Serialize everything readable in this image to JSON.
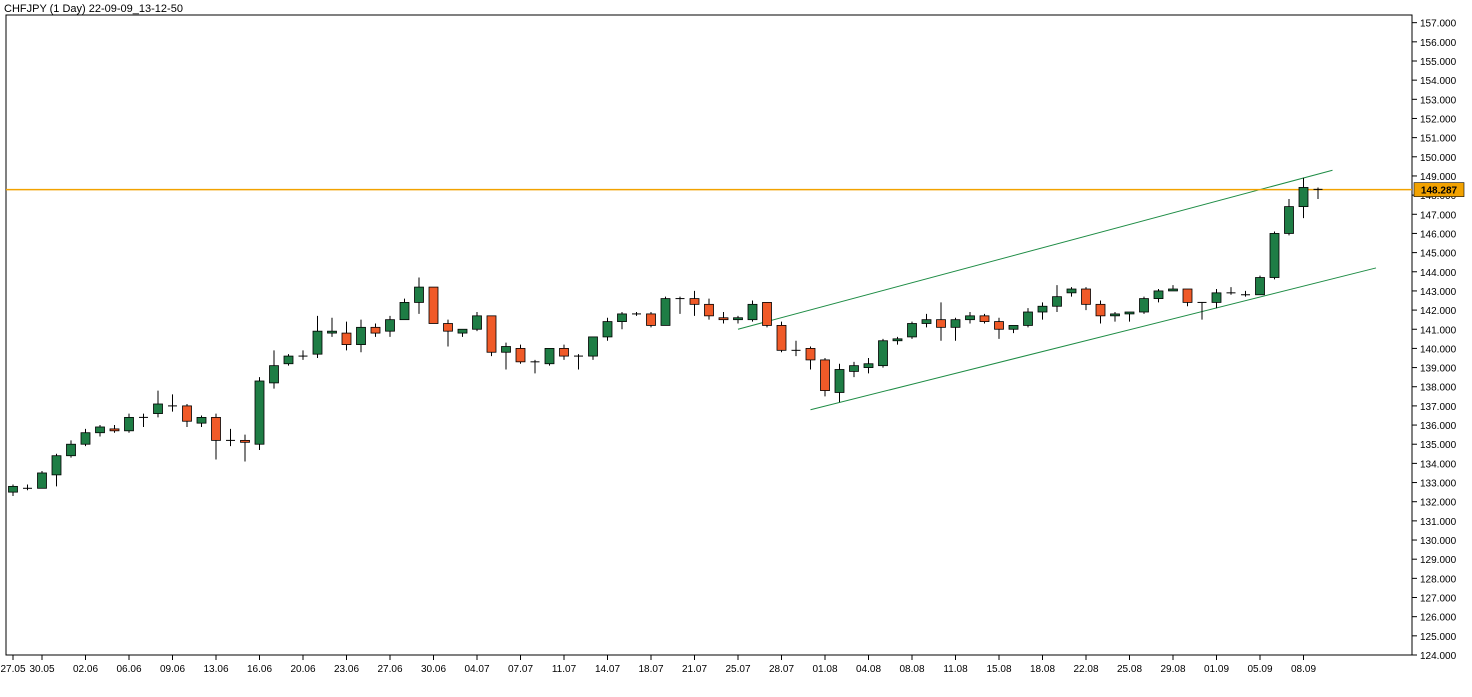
{
  "chart_data": {
    "type": "candlestick",
    "title": "CHFJPY (1 Day) 22-09-09_13-12-50",
    "ylim": [
      124.0,
      157.4
    ],
    "y_ticks": [
      "124.000",
      "125.000",
      "126.000",
      "127.000",
      "128.000",
      "129.000",
      "130.000",
      "131.000",
      "132.000",
      "133.000",
      "134.000",
      "135.000",
      "136.000",
      "137.000",
      "138.000",
      "139.000",
      "140.000",
      "141.000",
      "142.000",
      "143.000",
      "144.000",
      "145.000",
      "146.000",
      "147.000",
      "148.000",
      "149.000",
      "150.000",
      "151.000",
      "152.000",
      "153.000",
      "154.000",
      "155.000",
      "156.000",
      "157.000"
    ],
    "x_tick_labels": [
      {
        "label": "27.05",
        "index": 0
      },
      {
        "label": "30.05",
        "index": 2
      },
      {
        "label": "02.06",
        "index": 5
      },
      {
        "label": "06.06",
        "index": 8
      },
      {
        "label": "09.06",
        "index": 11
      },
      {
        "label": "13.06",
        "index": 14
      },
      {
        "label": "16.06",
        "index": 17
      },
      {
        "label": "20.06",
        "index": 20
      },
      {
        "label": "23.06",
        "index": 23
      },
      {
        "label": "27.06",
        "index": 26
      },
      {
        "label": "30.06",
        "index": 29
      },
      {
        "label": "04.07",
        "index": 32
      },
      {
        "label": "07.07",
        "index": 35
      },
      {
        "label": "11.07",
        "index": 38
      },
      {
        "label": "14.07",
        "index": 41
      },
      {
        "label": "18.07",
        "index": 44
      },
      {
        "label": "21.07",
        "index": 47
      },
      {
        "label": "25.07",
        "index": 50
      },
      {
        "label": "28.07",
        "index": 53
      },
      {
        "label": "01.08",
        "index": 56
      },
      {
        "label": "04.08",
        "index": 59
      },
      {
        "label": "08.08",
        "index": 62
      },
      {
        "label": "11.08",
        "index": 65
      },
      {
        "label": "15.08",
        "index": 68
      },
      {
        "label": "18.08",
        "index": 71
      },
      {
        "label": "22.08",
        "index": 74
      },
      {
        "label": "25.08",
        "index": 77
      },
      {
        "label": "29.08",
        "index": 80
      },
      {
        "label": "01.09",
        "index": 83
      },
      {
        "label": "05.09",
        "index": 86
      },
      {
        "label": "08.09",
        "index": 89
      }
    ],
    "bar_count": 91,
    "candles": [
      [
        132.5,
        132.9,
        132.3,
        132.8
      ],
      [
        132.7,
        132.9,
        132.6,
        132.7
      ],
      [
        132.7,
        133.6,
        132.7,
        133.5
      ],
      [
        133.4,
        134.5,
        132.8,
        134.4
      ],
      [
        134.4,
        135.2,
        134.3,
        135.0
      ],
      [
        135.0,
        135.8,
        134.9,
        135.6
      ],
      [
        135.6,
        136.0,
        135.4,
        135.9
      ],
      [
        135.8,
        136.0,
        135.6,
        135.7
      ],
      [
        135.7,
        136.6,
        135.6,
        136.4
      ],
      [
        136.4,
        136.6,
        135.9,
        136.4
      ],
      [
        136.6,
        137.8,
        136.4,
        137.1
      ],
      [
        137.0,
        137.6,
        136.7,
        137.0
      ],
      [
        137.0,
        137.1,
        135.9,
        136.2
      ],
      [
        136.1,
        136.5,
        135.9,
        136.4
      ],
      [
        136.4,
        136.6,
        134.2,
        135.2
      ],
      [
        135.2,
        135.8,
        134.9,
        135.2
      ],
      [
        135.2,
        135.5,
        134.1,
        135.1
      ],
      [
        135.0,
        138.5,
        134.7,
        138.3
      ],
      [
        138.2,
        139.9,
        137.9,
        139.1
      ],
      [
        139.2,
        139.7,
        139.1,
        139.6
      ],
      [
        139.6,
        139.9,
        139.4,
        139.6
      ],
      [
        139.7,
        141.7,
        139.5,
        140.9
      ],
      [
        140.8,
        141.6,
        140.6,
        140.9
      ],
      [
        140.8,
        141.4,
        139.9,
        140.2
      ],
      [
        140.2,
        141.5,
        139.8,
        141.1
      ],
      [
        141.1,
        141.3,
        140.6,
        140.8
      ],
      [
        140.9,
        141.7,
        140.6,
        141.5
      ],
      [
        141.5,
        142.6,
        141.5,
        142.4
      ],
      [
        142.4,
        143.7,
        141.8,
        143.2
      ],
      [
        143.2,
        143.2,
        141.3,
        141.3
      ],
      [
        141.3,
        141.5,
        140.1,
        140.9
      ],
      [
        140.8,
        141.0,
        140.6,
        141.0
      ],
      [
        141.0,
        141.9,
        140.9,
        141.7
      ],
      [
        141.7,
        141.7,
        139.6,
        139.8
      ],
      [
        139.8,
        140.3,
        138.9,
        140.1
      ],
      [
        140.0,
        140.2,
        139.2,
        139.3
      ],
      [
        139.3,
        139.4,
        138.7,
        139.3
      ],
      [
        139.2,
        140.0,
        139.1,
        140.0
      ],
      [
        140.0,
        140.2,
        139.4,
        139.6
      ],
      [
        139.6,
        139.7,
        138.9,
        139.6
      ],
      [
        139.6,
        140.6,
        139.4,
        140.6
      ],
      [
        140.6,
        141.6,
        140.4,
        141.4
      ],
      [
        141.4,
        141.9,
        141.0,
        141.8
      ],
      [
        141.8,
        141.9,
        141.7,
        141.8
      ],
      [
        141.8,
        141.9,
        141.1,
        141.2
      ],
      [
        141.2,
        142.7,
        141.2,
        142.6
      ],
      [
        142.6,
        142.7,
        141.8,
        142.6
      ],
      [
        142.6,
        143.0,
        141.7,
        142.3
      ],
      [
        142.3,
        142.6,
        141.5,
        141.7
      ],
      [
        141.6,
        141.9,
        141.3,
        141.5
      ],
      [
        141.5,
        141.7,
        141.3,
        141.6
      ],
      [
        141.5,
        142.5,
        141.4,
        142.3
      ],
      [
        142.4,
        142.4,
        141.1,
        141.2
      ],
      [
        141.2,
        141.4,
        139.8,
        139.9
      ],
      [
        139.9,
        140.4,
        139.6,
        139.9
      ],
      [
        140.0,
        140.1,
        138.9,
        139.4
      ],
      [
        139.4,
        139.5,
        137.5,
        137.8
      ],
      [
        137.7,
        139.2,
        137.2,
        138.9
      ],
      [
        138.8,
        139.3,
        138.5,
        139.1
      ],
      [
        139.0,
        139.5,
        138.7,
        139.2
      ],
      [
        139.1,
        140.5,
        139.0,
        140.4
      ],
      [
        140.4,
        140.6,
        140.2,
        140.5
      ],
      [
        140.6,
        141.4,
        140.5,
        141.3
      ],
      [
        141.3,
        141.8,
        141.1,
        141.5
      ],
      [
        141.5,
        142.4,
        140.4,
        141.1
      ],
      [
        141.1,
        141.6,
        140.4,
        141.5
      ],
      [
        141.5,
        141.9,
        141.3,
        141.7
      ],
      [
        141.7,
        141.8,
        141.3,
        141.4
      ],
      [
        141.4,
        141.6,
        140.5,
        141.0
      ],
      [
        141.0,
        141.2,
        140.8,
        141.2
      ],
      [
        141.2,
        142.1,
        141.1,
        141.9
      ],
      [
        141.9,
        142.4,
        141.5,
        142.2
      ],
      [
        142.2,
        143.3,
        141.9,
        142.7
      ],
      [
        142.9,
        143.2,
        142.7,
        143.1
      ],
      [
        143.1,
        143.2,
        142.0,
        142.3
      ],
      [
        142.3,
        142.5,
        141.3,
        141.7
      ],
      [
        141.7,
        141.9,
        141.4,
        141.8
      ],
      [
        141.8,
        141.9,
        141.4,
        141.9
      ],
      [
        141.9,
        142.7,
        141.8,
        142.6
      ],
      [
        142.6,
        143.1,
        142.4,
        143.0
      ],
      [
        143.0,
        143.3,
        143.0,
        143.1
      ],
      [
        143.1,
        143.1,
        142.2,
        142.4
      ],
      [
        142.4,
        142.4,
        141.5,
        142.4
      ],
      [
        142.4,
        143.1,
        142.1,
        142.9
      ],
      [
        142.9,
        143.2,
        142.8,
        142.9
      ],
      [
        142.8,
        143.0,
        142.7,
        142.8
      ],
      [
        142.8,
        143.8,
        142.8,
        143.7
      ],
      [
        143.7,
        146.1,
        143.6,
        146.0
      ],
      [
        146.0,
        147.8,
        145.9,
        147.4
      ],
      [
        147.4,
        148.9,
        146.8,
        148.4
      ],
      [
        148.3,
        148.4,
        147.8,
        148.3
      ]
    ],
    "up_color": "#1e7d45",
    "down_color": "#f05a28",
    "current_price": 148.287,
    "current_price_label": "148.287",
    "price_line_color": "#f2a200",
    "trend_lines": [
      {
        "x1": 50.0,
        "y1": 141.0,
        "x2": 91.0,
        "y2": 149.3
      },
      {
        "x1": 55.0,
        "y1": 136.8,
        "x2": 94.0,
        "y2": 144.2
      }
    ],
    "trend_line_color": "#1e8c45"
  }
}
